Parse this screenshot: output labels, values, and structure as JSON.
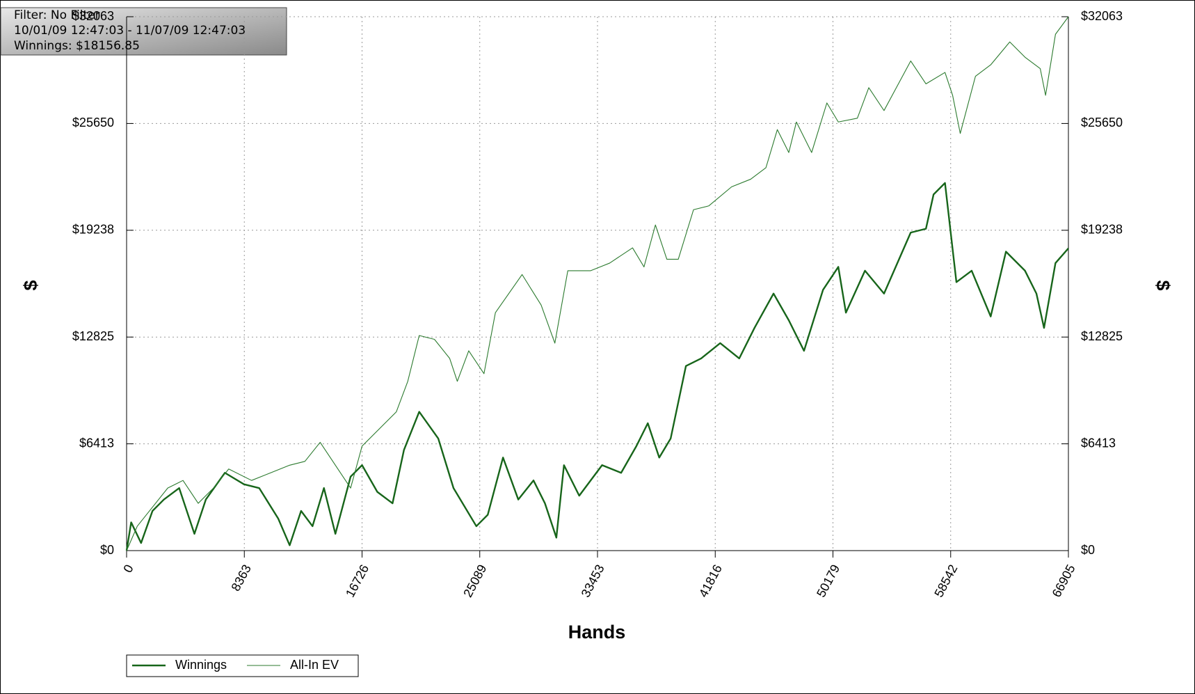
{
  "chart_data": {
    "type": "line",
    "info": [
      "Filter: No Filter",
      "10/01/09 12:47:03 - 11/07/09 12:47:03",
      "Winnings: $18156.85"
    ],
    "xlabel": "Hands",
    "ylabel": "$",
    "y2label": "$",
    "xlim": [
      0,
      66905
    ],
    "ylim": [
      0,
      32063
    ],
    "xticks": [
      0,
      8363,
      16726,
      25089,
      33453,
      41816,
      50179,
      58542,
      66905
    ],
    "yticks": [
      {
        "value": 0,
        "label": "$0"
      },
      {
        "value": 6413,
        "label": "$6413"
      },
      {
        "value": 12825,
        "label": "$12825"
      },
      {
        "value": 19238,
        "label": "$19238"
      },
      {
        "value": 25650,
        "label": "$25650"
      },
      {
        "value": 32063,
        "label": "$32063"
      }
    ],
    "grid": true,
    "legend": "bottom-left",
    "series": [
      {
        "name": "Winnings",
        "color": "#17651a",
        "x": [
          0,
          325,
          1029,
          1840,
          2652,
          3735,
          4818,
          5630,
          6983,
          8336,
          9419,
          10772,
          11584,
          12396,
          13208,
          14020,
          14832,
          15915,
          16727,
          17810,
          18892,
          19704,
          20787,
          22140,
          23222,
          24846,
          25658,
          26741,
          27824,
          28906,
          29718,
          30530,
          31071,
          32154,
          33778,
          35131,
          36214,
          37026,
          37838,
          38650,
          39733,
          40815,
          42169,
          43522,
          44605,
          45958,
          47041,
          48123,
          49476,
          50559,
          51100,
          52454,
          53807,
          55702,
          56784,
          57326,
          58138,
          58949,
          60032,
          61385,
          62468,
          63821,
          64633,
          65174,
          65986,
          66905
        ],
        "values": [
          0,
          1695,
          458,
          2382,
          3069,
          3756,
          1008,
          3069,
          4672,
          3985,
          3756,
          1924,
          321,
          2382,
          1466,
          3756,
          1008,
          4443,
          5130,
          3527,
          2840,
          6046,
          8336,
          6733,
          3756,
          1466,
          2153,
          5588,
          3069,
          4214,
          2840,
          779,
          5130,
          3298,
          5130,
          4672,
          6275,
          7649,
          5588,
          6733,
          11084,
          11542,
          12458,
          11542,
          13374,
          15435,
          13832,
          12000,
          15664,
          17038,
          14290,
          16809,
          15435,
          19099,
          19328,
          21389,
          22076,
          16122,
          16809,
          14061,
          17954,
          16809,
          15435,
          13374,
          17267,
          18157
        ]
      },
      {
        "name": "All-In EV",
        "color": "#2b7a2e",
        "x": [
          0,
          758,
          1840,
          2923,
          4006,
          5088,
          6171,
          7254,
          8878,
          10231,
          11584,
          12667,
          13749,
          14832,
          15915,
          16727,
          18080,
          19163,
          19975,
          20787,
          21869,
          22952,
          23493,
          24305,
          25388,
          26200,
          28095,
          29448,
          30422,
          31343,
          32966,
          34319,
          35943,
          36755,
          37567,
          38379,
          39191,
          40274,
          41356,
          42980,
          44334,
          45416,
          46228,
          47041,
          47582,
          48665,
          49747,
          50559,
          51912,
          52724,
          53807,
          55702,
          56784,
          58138,
          58679,
          59221,
          60303,
          61386,
          62739,
          63821,
          64904,
          65283,
          65986,
          66905
        ],
        "values": [
          0,
          1466,
          2611,
          3756,
          4214,
          2840,
          3756,
          4901,
          4214,
          4672,
          5130,
          5359,
          6504,
          5130,
          3756,
          6275,
          7420,
          8336,
          10168,
          12916,
          12687,
          11542,
          10168,
          11999,
          10626,
          14290,
          16580,
          14748,
          12458,
          16809,
          16809,
          17267,
          18183,
          17038,
          19557,
          17496,
          17496,
          20473,
          20702,
          21847,
          22305,
          22992,
          25282,
          23908,
          25740,
          23908,
          26885,
          25740,
          25969,
          27801,
          26427,
          29404,
          28030,
          28717,
          27343,
          25053,
          28488,
          29175,
          30549,
          29633,
          28946,
          27343,
          31007,
          32063
        ]
      }
    ]
  }
}
